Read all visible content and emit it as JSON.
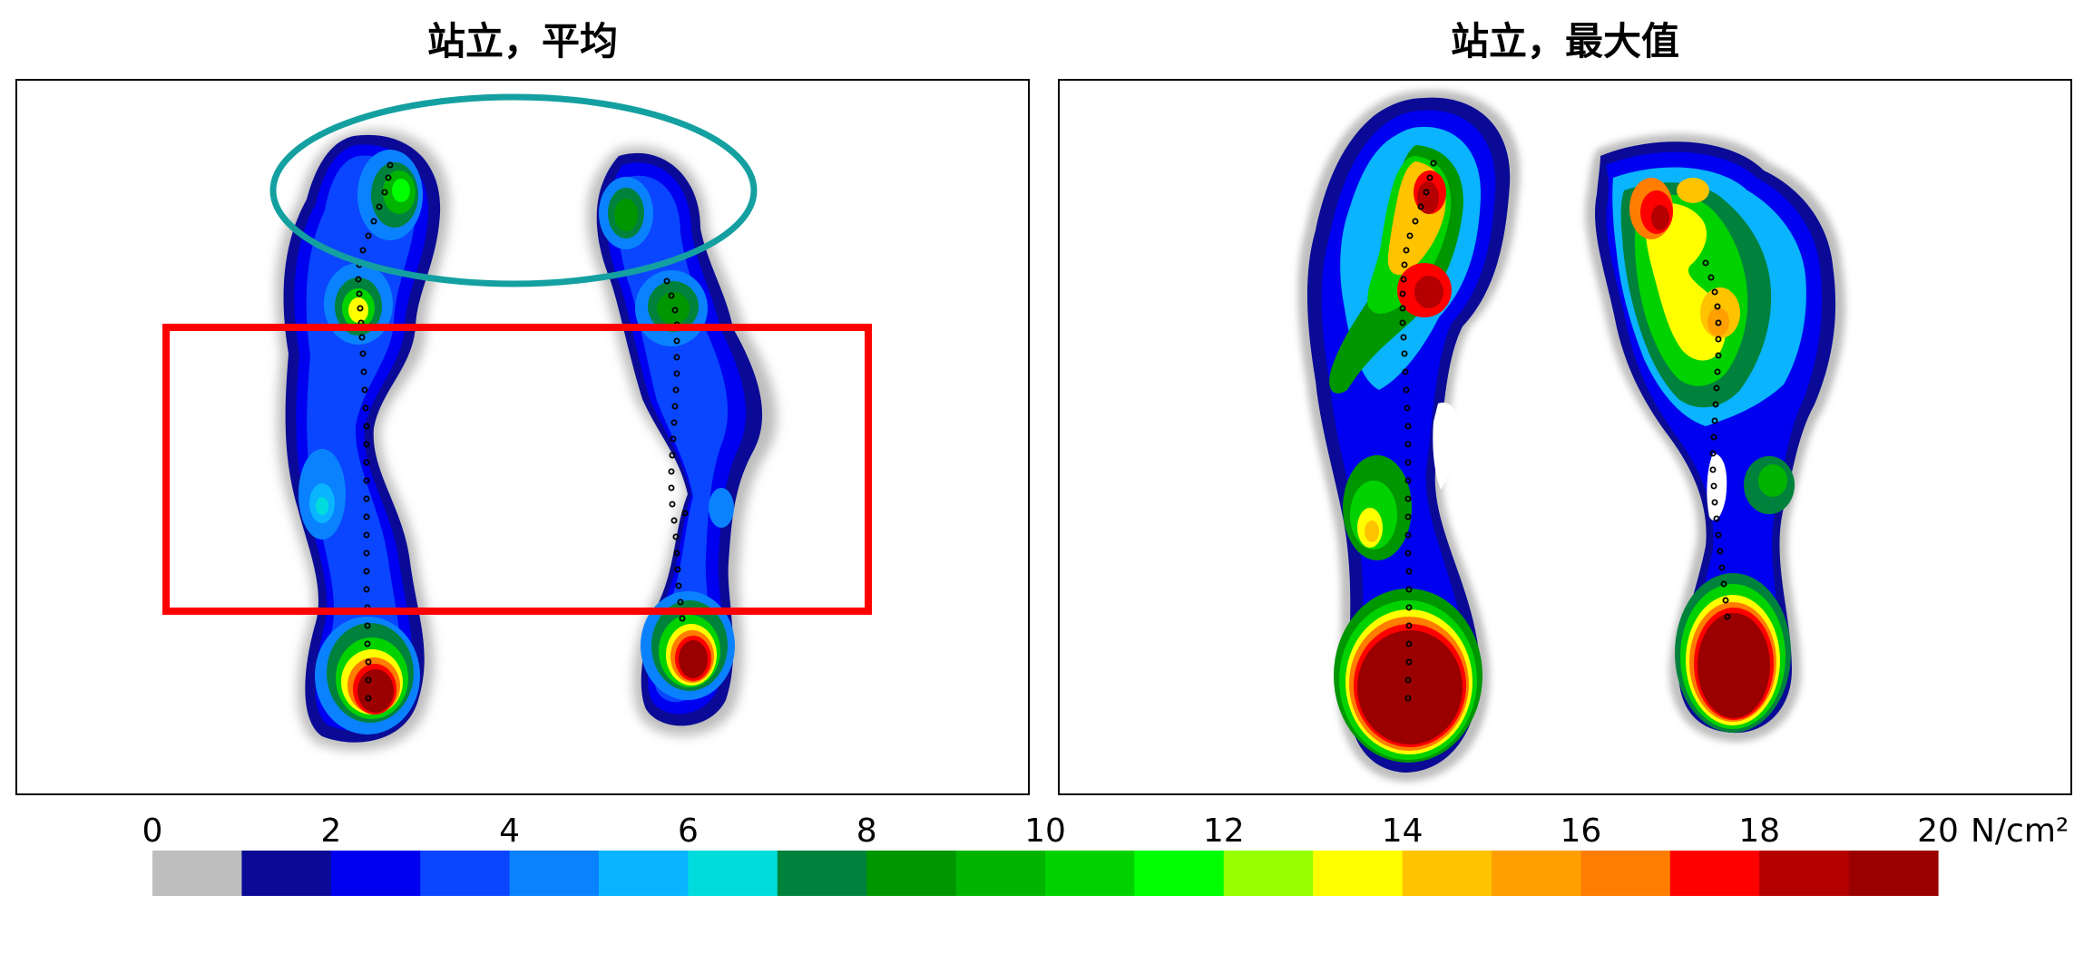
{
  "figure": {
    "panels": [
      {
        "title": "站立，平均"
      },
      {
        "title": "站立，最大值"
      }
    ],
    "colorbar": {
      "unit": "N/cm²",
      "tick_labels": [
        "0",
        "2",
        "4",
        "6",
        "8",
        "10",
        "12",
        "14",
        "16",
        "18",
        "20"
      ],
      "levels": 20,
      "colors": [
        "#bebebe",
        "#0a0a96",
        "#0000f0",
        "#0a46ff",
        "#0a82ff",
        "#0ab4ff",
        "#00dcdc",
        "#00823c",
        "#009600",
        "#00b400",
        "#00d200",
        "#00ff00",
        "#96ff00",
        "#ffff00",
        "#ffc300",
        "#ffa000",
        "#ff7d00",
        "#ff0000",
        "#b40000",
        "#9b0000"
      ]
    }
  },
  "chart_data": {
    "type": "heatmap",
    "colorbar": {
      "min": 0,
      "max": 20,
      "step": 1,
      "unit": "N/cm²",
      "ticks": [
        0,
        2,
        4,
        6,
        8,
        10,
        12,
        14,
        16,
        18,
        20
      ]
    },
    "panels": [
      {
        "title": "站立，平均",
        "annotations": [
          "teal-ellipse-forefoot",
          "red-rectangle-midfoot"
        ]
      },
      {
        "title": "站立，最大值"
      }
    ]
  }
}
